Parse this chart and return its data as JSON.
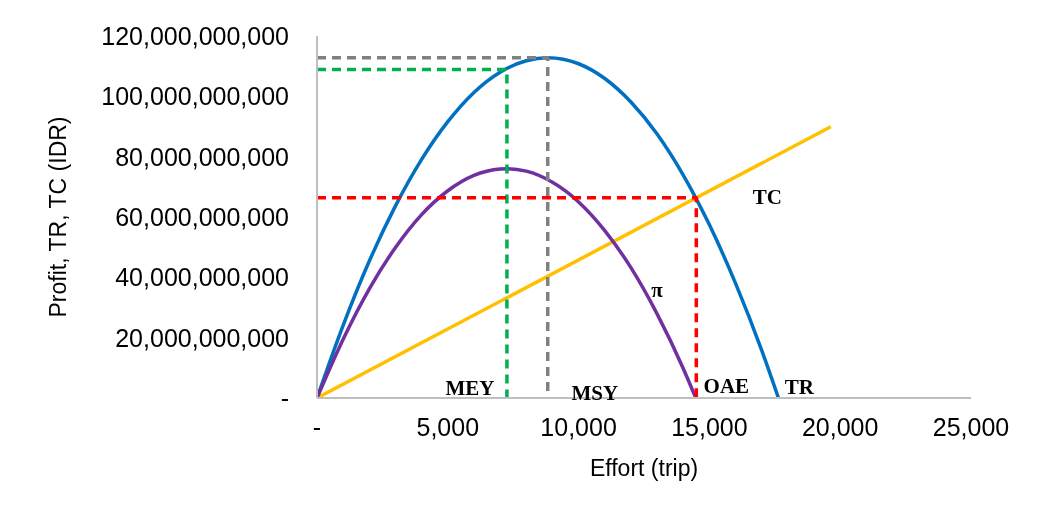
{
  "chart_data": {
    "type": "line",
    "xlabel": "Effort (trip)",
    "ylabel": "Profit, TR, TC (IDR)",
    "xlim": [
      0,
      25000
    ],
    "xticks": [
      {
        "value": 0,
        "label": "-"
      },
      {
        "value": 5000,
        "label": "5,000"
      },
      {
        "value": 10000,
        "label": "10,000"
      },
      {
        "value": 15000,
        "label": "15,000"
      },
      {
        "value": 20000,
        "label": "20,000"
      },
      {
        "value": 25000,
        "label": "25,000"
      }
    ],
    "ylim": [
      0,
      120000000000
    ],
    "yticks": [
      {
        "value": 0,
        "label": "-"
      },
      {
        "value": 20000000000,
        "label": "20,000,000,000"
      },
      {
        "value": 40000000000,
        "label": "40,000,000,000"
      },
      {
        "value": 60000000000,
        "label": "60,000,000,000"
      },
      {
        "value": 80000000000,
        "label": "80,000,000,000"
      },
      {
        "value": 100000000000,
        "label": "100,000,000,000"
      },
      {
        "value": 120000000000,
        "label": "120,000,000,000"
      }
    ],
    "grid": false,
    "marker": "none",
    "line_style": "solid",
    "series": [
      {
        "color": "#0070c0",
        "x": [
          0,
          1000,
          2000,
          3000,
          4000,
          5000,
          6000,
          7000,
          8000,
          8820,
          10000,
          11000,
          12000,
          13000,
          14000,
          15000,
          16000,
          17000,
          17640
        ],
        "values": [
          0,
          24100000000,
          45400000000,
          63700000000,
          79100000000,
          91600000000,
          101300000000,
          108000000000,
          111800000000,
          112800000000,
          110800000000,
          105900000000,
          98100000000,
          87500000000,
          73900000000,
          57400000000,
          38000000000,
          15800000000,
          0
        ]
      },
      {
        "color": "#ffc000",
        "x": [
          0,
          19640
        ],
        "values": [
          0,
          89900000000
        ]
      },
      {
        "color": "#7030a0",
        "x": [
          0,
          1000,
          2000,
          3000,
          4000,
          5000,
          6000,
          7000,
          7240,
          8000,
          9000,
          10000,
          11000,
          12000,
          13000,
          14000,
          14480
        ],
        "values": [
          0,
          19500000000,
          36200000000,
          49900000000,
          60800000000,
          68700000000,
          73800000000,
          75900000000,
          76000000000,
          75200000000,
          71500000000,
          65000000000,
          55500000000,
          43200000000,
          27900000000,
          9800000000,
          0
        ]
      },
      {
        "color": "#808080",
        "line_style": "dashed",
        "x": [
          0,
          8820,
          8820
        ],
        "values": [
          112800000000,
          112800000000,
          0
        ]
      },
      {
        "color": "#00b050",
        "line_style": "dashed",
        "x": [
          0,
          7260,
          7260
        ],
        "values": [
          108900000000,
          108900000000,
          0
        ]
      },
      {
        "color": "#ff0000",
        "line_style": "dashed",
        "x": [
          0,
          14500,
          14500
        ],
        "values": [
          66400000000,
          66400000000,
          0
        ]
      }
    ],
    "annotations": [
      {
        "text": "MEY",
        "x": 7260,
        "y": 0
      },
      {
        "text": "MSY",
        "x": 8820,
        "y": 0
      },
      {
        "text": "OAE",
        "x": 14500,
        "y": 0
      },
      {
        "text": "TR",
        "x": 17640,
        "y": 0
      },
      {
        "text": "TC",
        "x": 14500,
        "y": 66400000000
      },
      {
        "text": "π",
        "x": 13000,
        "y": 27900000000
      }
    ]
  }
}
